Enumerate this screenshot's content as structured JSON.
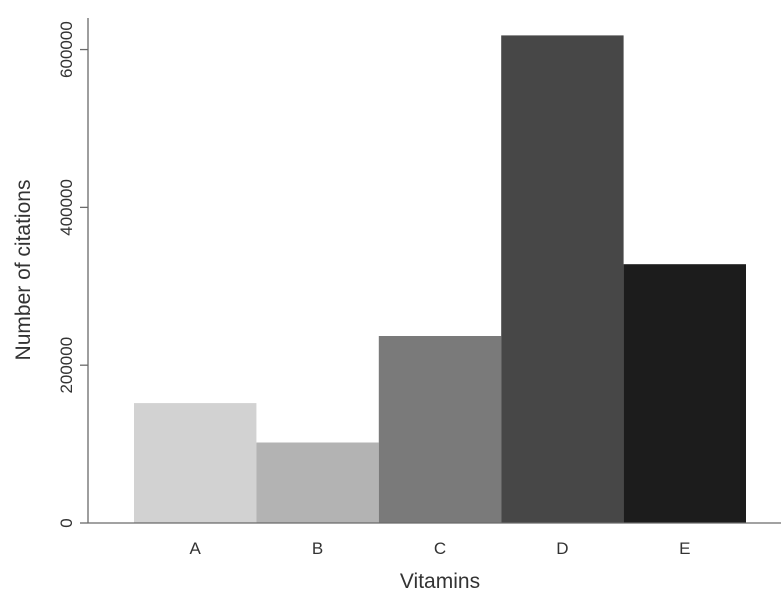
{
  "chart_data": {
    "type": "bar",
    "categories": [
      "A",
      "B",
      "C",
      "D",
      "E"
    ],
    "values": [
      152000,
      102000,
      237000,
      618000,
      328000
    ],
    "colors": [
      "#d2d2d2",
      "#b3b3b3",
      "#7a7a7a",
      "#474747",
      "#1c1c1c"
    ],
    "xlabel": "Vitamins",
    "ylabel": "Number of citations",
    "ylim": [
      0,
      640000
    ],
    "yticks": [
      0,
      200000,
      400000,
      600000
    ],
    "ytick_labels": [
      "0",
      "200000",
      "400000",
      "600000"
    ],
    "grid": false,
    "legend": "none"
  }
}
